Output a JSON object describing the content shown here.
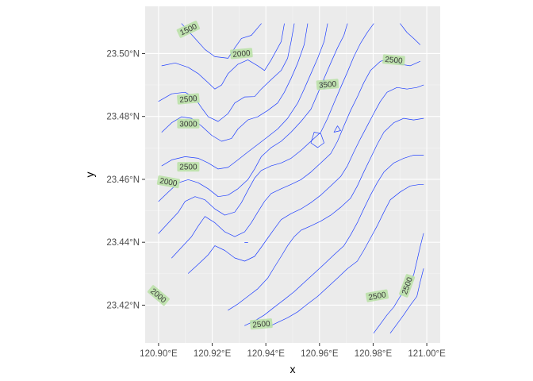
{
  "chart_data": {
    "type": "contour",
    "title": "",
    "xlabel": "x",
    "ylabel": "y",
    "xlim": [
      120.895,
      121.005
    ],
    "ylim": [
      23.408,
      23.515
    ],
    "x_ticks": [
      {
        "value": 120.9,
        "label": "120.90°E"
      },
      {
        "value": 120.92,
        "label": "120.92°E"
      },
      {
        "value": 120.94,
        "label": "120.94°E"
      },
      {
        "value": 120.96,
        "label": "120.96°E"
      },
      {
        "value": 120.98,
        "label": "120.98°E"
      },
      {
        "value": 121.0,
        "label": "121.00°E"
      }
    ],
    "y_ticks": [
      {
        "value": 23.42,
        "label": "23.42°N"
      },
      {
        "value": 23.44,
        "label": "23.44°N"
      },
      {
        "value": 23.46,
        "label": "23.46°N"
      },
      {
        "value": 23.48,
        "label": "23.48°N"
      },
      {
        "value": 23.5,
        "label": "23.50°N"
      }
    ],
    "grid": true,
    "line_color": "#1f3fff",
    "panel_color": "#ebebeb",
    "label_fill": "#b9e0a5",
    "contour_labels": [
      {
        "text": "1500",
        "x": 120.9111,
        "y": 23.5077,
        "angle": -25
      },
      {
        "text": "2000",
        "x": 120.9309,
        "y": 23.5,
        "angle": -5
      },
      {
        "text": "2500",
        "x": 120.9877,
        "y": 23.498,
        "angle": 5
      },
      {
        "text": "3500",
        "x": 120.963,
        "y": 23.4902,
        "angle": -5
      },
      {
        "text": "2500",
        "x": 120.9111,
        "y": 23.4856,
        "angle": -5
      },
      {
        "text": "3000",
        "x": 120.9111,
        "y": 23.4777,
        "angle": 0
      },
      {
        "text": "2500",
        "x": 120.9111,
        "y": 23.464,
        "angle": 0
      },
      {
        "text": "2000",
        "x": 120.9037,
        "y": 23.4592,
        "angle": 10
      },
      {
        "text": "2000",
        "x": 120.9,
        "y": 23.4231,
        "angle": 40
      },
      {
        "text": "2500",
        "x": 120.9383,
        "y": 23.414,
        "angle": -5
      },
      {
        "text": "2500",
        "x": 120.9815,
        "y": 23.423,
        "angle": -10
      },
      {
        "text": "2500",
        "x": 120.9926,
        "y": 23.4262,
        "angle": -70
      }
    ],
    "contour_lines": [
      [
        [
          120.9086,
          23.5095
        ],
        [
          120.9136,
          23.5048
        ],
        [
          120.9173,
          23.5013
        ],
        [
          120.921,
          23.499
        ],
        [
          120.9259,
          23.4985
        ],
        [
          120.9284,
          23.5018
        ],
        [
          120.9309,
          23.5048
        ],
        [
          120.9346,
          23.5058
        ],
        [
          120.9383,
          23.5095
        ]
      ],
      [
        [
          120.9012,
          23.4961
        ],
        [
          120.9062,
          23.497
        ],
        [
          120.9111,
          23.4956
        ],
        [
          120.9148,
          23.4936
        ],
        [
          120.9185,
          23.4907
        ],
        [
          120.921,
          23.4887
        ],
        [
          120.9235,
          23.49
        ],
        [
          120.9259,
          23.4936
        ],
        [
          120.9296,
          23.4966
        ],
        [
          120.9333,
          23.498
        ],
        [
          120.937,
          23.4961
        ],
        [
          120.9395,
          23.4946
        ],
        [
          120.942,
          23.498
        ],
        [
          120.9457,
          23.5038
        ],
        [
          120.9469,
          23.5095
        ]
      ],
      [
        [
          120.9,
          23.4848
        ],
        [
          120.9049,
          23.4872
        ],
        [
          120.9099,
          23.4877
        ],
        [
          120.9136,
          23.4858
        ],
        [
          120.916,
          23.4828
        ],
        [
          120.9185,
          23.4799
        ],
        [
          120.9222,
          23.4784
        ],
        [
          120.9259,
          23.4809
        ],
        [
          120.9284,
          23.4843
        ],
        [
          120.9321,
          23.4862
        ],
        [
          120.9358,
          23.4863
        ],
        [
          120.9383,
          23.4887
        ],
        [
          120.942,
          23.4917
        ],
        [
          120.9457,
          23.4946
        ],
        [
          120.9481,
          23.4985
        ],
        [
          120.9494,
          23.5038
        ],
        [
          120.9506,
          23.5095
        ]
      ],
      [
        [
          120.9012,
          23.475
        ],
        [
          120.9049,
          23.478
        ],
        [
          120.9086,
          23.4799
        ],
        [
          120.9123,
          23.4794
        ],
        [
          120.916,
          23.477
        ],
        [
          120.9198,
          23.474
        ],
        [
          120.9235,
          23.4721
        ],
        [
          120.9272,
          23.473
        ],
        [
          120.9296,
          23.476
        ],
        [
          120.9333,
          23.4789
        ],
        [
          120.937,
          23.4799
        ],
        [
          120.9407,
          23.4819
        ],
        [
          120.9444,
          23.4843
        ],
        [
          120.9469,
          23.4877
        ],
        [
          120.9494,
          23.4921
        ],
        [
          120.9519,
          23.497
        ],
        [
          120.9543,
          23.5028
        ],
        [
          120.9556,
          23.5095
        ]
      ],
      [
        [
          120.9012,
          23.4643
        ],
        [
          120.9049,
          23.4662
        ],
        [
          120.9099,
          23.4672
        ],
        [
          120.9148,
          23.4667
        ],
        [
          120.9185,
          23.4652
        ],
        [
          120.9222,
          23.4633
        ],
        [
          120.9259,
          23.4638
        ],
        [
          120.9296,
          23.4662
        ],
        [
          120.9333,
          23.4687
        ],
        [
          120.937,
          23.4711
        ],
        [
          120.9407,
          23.4735
        ],
        [
          120.9444,
          23.476
        ],
        [
          120.9481,
          23.4794
        ],
        [
          120.9519,
          23.4843
        ],
        [
          120.9543,
          23.4887
        ],
        [
          120.9568,
          23.4936
        ],
        [
          120.9593,
          23.4985
        ],
        [
          120.9617,
          23.5038
        ],
        [
          120.963,
          23.5095
        ]
      ],
      [
        [
          120.9,
          23.453
        ],
        [
          120.9037,
          23.456
        ],
        [
          120.9074,
          23.4589
        ],
        [
          120.9111,
          23.4599
        ],
        [
          120.9148,
          23.4589
        ],
        [
          120.9185,
          23.457
        ],
        [
          120.9222,
          23.4545
        ],
        [
          120.9259,
          23.455
        ],
        [
          120.9296,
          23.457
        ],
        [
          120.9333,
          23.4599
        ],
        [
          120.9358,
          23.4633
        ],
        [
          120.9383,
          23.4672
        ],
        [
          120.942,
          23.4701
        ],
        [
          120.9457,
          23.4721
        ],
        [
          120.9494,
          23.475
        ],
        [
          120.9531,
          23.4784
        ],
        [
          120.9568,
          23.4823
        ],
        [
          120.9593,
          23.4872
        ],
        [
          120.9617,
          23.4921
        ],
        [
          120.9642,
          23.497
        ],
        [
          120.9667,
          23.5018
        ],
        [
          120.9691,
          23.5058
        ],
        [
          120.9704,
          23.5095
        ]
      ],
      [
        [
          120.9,
          23.4428
        ],
        [
          120.9037,
          23.4462
        ],
        [
          120.9074,
          23.4496
        ],
        [
          120.9099,
          23.453
        ],
        [
          120.9136,
          23.4545
        ],
        [
          120.9173,
          23.4535
        ],
        [
          120.921,
          23.4506
        ],
        [
          120.9247,
          23.4486
        ],
        [
          120.9284,
          23.4496
        ],
        [
          120.9309,
          23.4526
        ],
        [
          120.9333,
          23.4565
        ],
        [
          120.9358,
          23.4604
        ],
        [
          120.9383,
          23.4628
        ],
        [
          120.942,
          23.4643
        ],
        [
          120.9457,
          23.4652
        ],
        [
          120.9494,
          23.4667
        ],
        [
          120.9531,
          23.4692
        ],
        [
          120.9568,
          23.4721
        ],
        [
          120.9605,
          23.475
        ],
        [
          120.963,
          23.4794
        ],
        [
          120.9654,
          23.4843
        ],
        [
          120.9679,
          23.4892
        ],
        [
          120.9704,
          23.4941
        ],
        [
          120.9728,
          23.499
        ],
        [
          120.9753,
          23.5033
        ],
        [
          120.9778,
          23.5067
        ],
        [
          120.9802,
          23.5095
        ]
      ],
      [
        [
          120.9049,
          23.435
        ],
        [
          120.9086,
          23.4384
        ],
        [
          120.9123,
          23.4418
        ],
        [
          120.9148,
          23.4452
        ],
        [
          120.9173,
          23.4482
        ],
        [
          120.921,
          23.4462
        ],
        [
          120.9247,
          23.4433
        ],
        [
          120.9284,
          23.4418
        ],
        [
          120.9321,
          23.4433
        ],
        [
          120.9346,
          23.4462
        ],
        [
          120.937,
          23.4496
        ],
        [
          120.9395,
          23.453
        ],
        [
          120.942,
          23.4555
        ],
        [
          120.9457,
          23.457
        ],
        [
          120.9494,
          23.4584
        ],
        [
          120.9531,
          23.4599
        ],
        [
          120.9568,
          23.4623
        ],
        [
          120.9605,
          23.4652
        ],
        [
          120.9642,
          23.4682
        ],
        [
          120.9667,
          23.4721
        ],
        [
          120.9691,
          23.477
        ],
        [
          120.9716,
          23.4819
        ],
        [
          120.9741,
          23.4862
        ],
        [
          120.9765,
          23.4907
        ],
        [
          120.979,
          23.4946
        ],
        [
          120.9827,
          23.4975
        ],
        [
          120.9864,
          23.4985
        ],
        [
          120.9901,
          23.4966
        ],
        [
          120.9938,
          23.4961
        ],
        [
          120.9975,
          23.4975
        ]
      ],
      [
        [
          120.9111,
          23.4301
        ],
        [
          120.9148,
          23.433
        ],
        [
          120.9185,
          23.436
        ],
        [
          120.921,
          23.4389
        ],
        [
          120.9247,
          23.4374
        ],
        [
          120.9284,
          23.435
        ],
        [
          120.9321,
          23.434
        ],
        [
          120.9358,
          23.4355
        ],
        [
          120.9383,
          23.4384
        ],
        [
          120.9407,
          23.4413
        ],
        [
          120.9432,
          23.4443
        ],
        [
          120.9457,
          23.4472
        ],
        [
          120.9494,
          23.4491
        ],
        [
          120.9531,
          23.4506
        ],
        [
          120.9568,
          23.4526
        ],
        [
          120.9605,
          23.455
        ],
        [
          120.9642,
          23.4579
        ],
        [
          120.9679,
          23.4609
        ],
        [
          120.9704,
          23.4643
        ],
        [
          120.9728,
          23.4687
        ],
        [
          120.9753,
          23.473
        ],
        [
          120.9778,
          23.477
        ],
        [
          120.9802,
          23.4809
        ],
        [
          120.9827,
          23.4848
        ],
        [
          120.9852,
          23.4877
        ],
        [
          120.9889,
          23.4892
        ],
        [
          120.9926,
          23.4887
        ],
        [
          120.9963,
          23.4892
        ],
        [
          120.9988,
          23.49
        ]
      ],
      [
        [
          120.9259,
          23.4184
        ],
        [
          120.9296,
          23.4204
        ],
        [
          120.9333,
          23.4228
        ],
        [
          120.937,
          23.4252
        ],
        [
          120.9407,
          23.4286
        ],
        [
          120.9432,
          23.4321
        ],
        [
          120.9457,
          23.4355
        ],
        [
          120.9481,
          23.4389
        ],
        [
          120.9506,
          23.4418
        ],
        [
          120.9531,
          23.4438
        ],
        [
          120.9568,
          23.4452
        ],
        [
          120.9605,
          23.4467
        ],
        [
          120.9642,
          23.4486
        ],
        [
          120.9679,
          23.4511
        ],
        [
          120.9716,
          23.454
        ],
        [
          120.9741,
          23.4579
        ],
        [
          120.9765,
          23.4623
        ],
        [
          120.979,
          23.4667
        ],
        [
          120.9815,
          23.4711
        ],
        [
          120.984,
          23.475
        ],
        [
          120.9877,
          23.478
        ],
        [
          120.9914,
          23.4794
        ],
        [
          120.9951,
          23.4789
        ],
        [
          120.9988,
          23.4794
        ]
      ],
      [
        [
          120.9321,
          23.4135
        ],
        [
          120.9358,
          23.415
        ],
        [
          120.9395,
          23.4169
        ],
        [
          120.9432,
          23.4194
        ],
        [
          120.9469,
          23.4218
        ],
        [
          120.9506,
          23.4243
        ],
        [
          120.9543,
          23.4272
        ],
        [
          120.958,
          23.4301
        ],
        [
          120.9617,
          23.433
        ],
        [
          120.9654,
          23.436
        ],
        [
          120.9691,
          23.4389
        ],
        [
          120.9716,
          23.4423
        ],
        [
          120.9741,
          23.4462
        ],
        [
          120.9765,
          23.4506
        ],
        [
          120.979,
          23.455
        ],
        [
          120.9815,
          23.4589
        ],
        [
          120.984,
          23.4623
        ],
        [
          120.9877,
          23.4652
        ],
        [
          120.9914,
          23.4667
        ],
        [
          120.9951,
          23.4677
        ],
        [
          120.9988,
          23.4677
        ]
      ],
      [
        [
          120.9407,
          23.413
        ],
        [
          120.9444,
          23.4145
        ],
        [
          120.9481,
          23.416
        ],
        [
          120.9519,
          23.4179
        ],
        [
          120.9556,
          23.4204
        ],
        [
          120.9593,
          23.4228
        ],
        [
          120.963,
          23.4257
        ],
        [
          120.9667,
          23.4286
        ],
        [
          120.9704,
          23.4316
        ],
        [
          120.9741,
          23.434
        ],
        [
          120.9765,
          23.4374
        ],
        [
          120.979,
          23.4413
        ],
        [
          120.9815,
          23.4452
        ],
        [
          120.984,
          23.4496
        ],
        [
          120.9864,
          23.4535
        ],
        [
          120.9901,
          23.456
        ],
        [
          120.9938,
          23.4579
        ],
        [
          120.9975,
          23.4584
        ],
        [
          120.9988,
          23.4584
        ]
      ],
      [
        [
          120.9802,
          23.4111
        ],
        [
          120.9827,
          23.414
        ],
        [
          120.9852,
          23.4169
        ],
        [
          120.9877,
          23.4194
        ],
        [
          120.9901,
          23.4228
        ],
        [
          120.9926,
          23.4262
        ],
        [
          120.9951,
          23.4296
        ],
        [
          120.9963,
          23.434
        ],
        [
          120.9975,
          23.4384
        ],
        [
          120.9988,
          23.4428
        ]
      ],
      [
        [
          120.9864,
          23.4111
        ],
        [
          120.9889,
          23.414
        ],
        [
          120.9914,
          23.4169
        ],
        [
          120.9938,
          23.4199
        ],
        [
          120.9963,
          23.4228
        ],
        [
          120.9975,
          23.4272
        ],
        [
          120.9988,
          23.4316
        ]
      ],
      [
        [
          120.9901,
          23.5095
        ],
        [
          120.9926,
          23.5067
        ],
        [
          120.9951,
          23.5048
        ],
        [
          120.9975,
          23.5028
        ]
      ],
      [
        [
          120.9605,
          23.4902
        ],
        [
          120.9617,
          23.4887
        ],
        [
          120.963,
          23.4902
        ],
        [
          120.9617,
          23.4916
        ],
        [
          120.9605,
          23.4902
        ]
      ],
      [
        [
          120.9568,
          23.4716
        ],
        [
          120.9593,
          23.4701
        ],
        [
          120.9617,
          23.4716
        ],
        [
          120.9605,
          23.4745
        ],
        [
          120.958,
          23.475
        ],
        [
          120.9568,
          23.4716
        ]
      ],
      [
        [
          120.9654,
          23.475
        ],
        [
          120.9679,
          23.4755
        ],
        [
          120.9667,
          23.477
        ],
        [
          120.9654,
          23.475
        ]
      ],
      [
        [
          120.9321,
          23.4399
        ],
        [
          120.9333,
          23.4399
        ]
      ]
    ]
  }
}
